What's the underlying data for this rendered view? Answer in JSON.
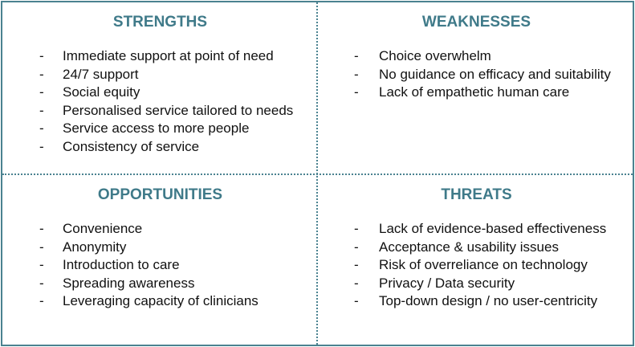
{
  "quadrants": [
    {
      "title": "STRENGTHS",
      "items": [
        "Immediate support at point of need",
        "24/7 support",
        "Social equity",
        "Personalised service tailored to needs",
        "Service access to more people",
        "Consistency of service"
      ]
    },
    {
      "title": "WEAKNESSES",
      "items": [
        "Choice overwhelm",
        "No guidance on efficacy and suitability",
        "Lack of empathetic human care"
      ]
    },
    {
      "title": "OPPORTUNITIES",
      "items": [
        "Convenience",
        "Anonymity",
        "Introduction to care",
        "Spreading awareness",
        "Leveraging capacity of clinicians"
      ]
    },
    {
      "title": "THREATS",
      "items": [
        "Lack of evidence-based effectiveness",
        "Acceptance & usability issues",
        "Risk of overreliance on technology",
        "Privacy / Data security",
        "Top-down design / no user-centricity"
      ]
    }
  ]
}
